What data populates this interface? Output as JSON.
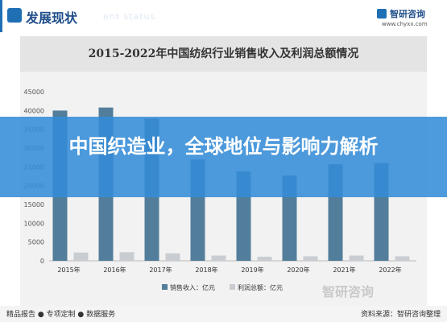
{
  "header": {
    "title": "发展现状",
    "ghost_text": "ent status",
    "brand": "智研咨询",
    "url": "www.chyxx.com"
  },
  "banner": {
    "text": "中国织造业，全球地位与影响力解析"
  },
  "footer": {
    "left": "精品报告 ● 专项定制 ● 数据服务",
    "right": "资料来源：智研咨询整理",
    "watermark": "智研咨询"
  },
  "colors": {
    "sales": "#527e9b",
    "profit": "#c9cdd2",
    "banner": "#348cd7",
    "accent": "#1f6fb5"
  },
  "chart_data": {
    "type": "bar",
    "title": "2015-2022年中国纺织行业销售收入及利润总额情况",
    "categories": [
      "2015年",
      "2016年",
      "2017年",
      "2018年",
      "2019年",
      "2020年",
      "2021年",
      "2022年"
    ],
    "series": [
      {
        "name": "销售收入：亿元",
        "values": [
          40000,
          40800,
          37800,
          27000,
          23800,
          22700,
          25700,
          26000
        ]
      },
      {
        "name": "利润总额：亿元",
        "values": [
          2200,
          2300,
          2000,
          1400,
          1100,
          1200,
          1400,
          1200
        ]
      }
    ],
    "yticks": [
      0,
      5000,
      10000,
      15000,
      20000,
      25000,
      30000,
      35000,
      40000,
      45000
    ],
    "ylim": [
      0,
      45000
    ],
    "legend_position": "bottom"
  }
}
